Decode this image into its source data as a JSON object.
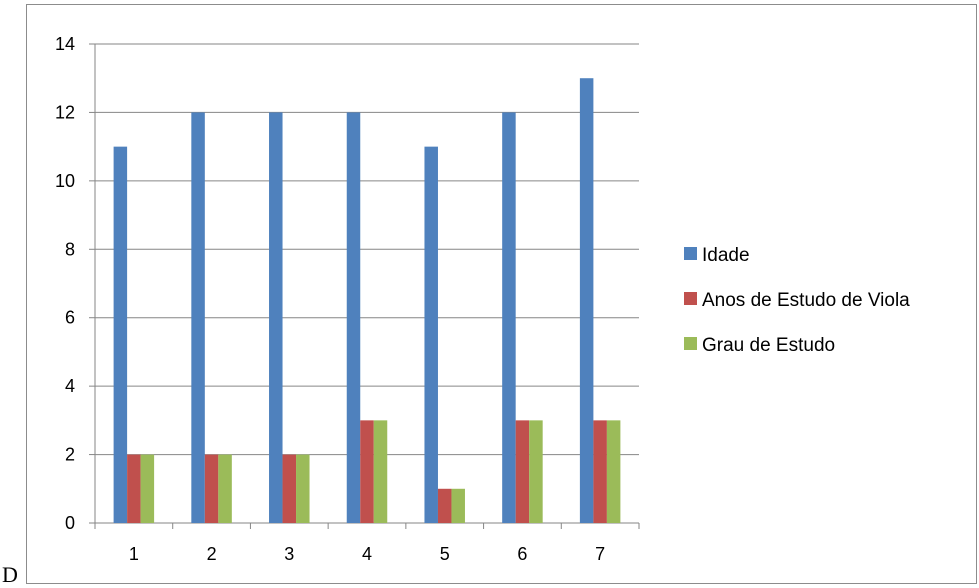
{
  "chart_data": {
    "type": "bar",
    "title": "",
    "xlabel": "",
    "ylabel": "",
    "categories": [
      "1",
      "2",
      "3",
      "4",
      "5",
      "6",
      "7"
    ],
    "ylim": [
      0,
      14
    ],
    "yticks": [
      0,
      2,
      4,
      6,
      8,
      10,
      12,
      14
    ],
    "grid": true,
    "legend_position": "right",
    "series": [
      {
        "name": "Idade",
        "color": "#4f81bd",
        "values": [
          11,
          12,
          12,
          12,
          11,
          12,
          13
        ]
      },
      {
        "name": "Anos de Estudo de Viola",
        "color": "#c0504d",
        "values": [
          2,
          2,
          2,
          3,
          1,
          3,
          3
        ]
      },
      {
        "name": "Grau de Estudo",
        "color": "#9bbb59",
        "values": [
          2,
          2,
          2,
          3,
          1,
          3,
          3
        ]
      }
    ]
  },
  "page_fragment_text": "D"
}
